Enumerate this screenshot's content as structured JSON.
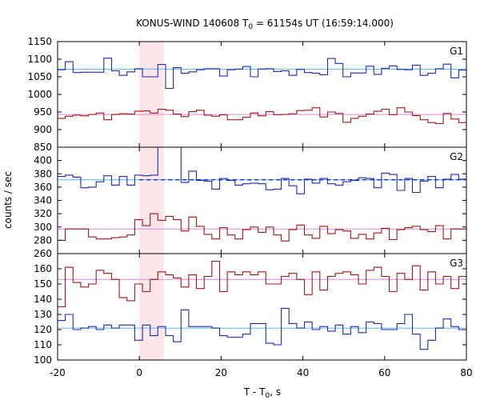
{
  "title": "KONUS-WIND 140608 T",
  "title_sub": "0",
  "title_rest": " = 61154s UT (16:59:14.000)",
  "ylabel": "counts / sec",
  "xlabel_main": "T - T",
  "xlabel_sub": "0",
  "xlabel_tail": ", s",
  "colors": {
    "blue": "#1f2bb0",
    "red": "#a01818",
    "cyan_level": "#56b6f0",
    "violet_level": "#d98ad8",
    "shade": "#fde6ea",
    "frame": "#000000"
  },
  "chart_data": {
    "type": "line",
    "x_axis": {
      "range": [
        -20,
        80
      ],
      "ticks": [
        -20,
        0,
        20,
        40,
        60,
        80
      ],
      "labels": [
        "-20",
        "0",
        "20",
        "40",
        "60",
        "80"
      ]
    },
    "shaded_interval": [
      0,
      6
    ],
    "panels": [
      {
        "name": "G1",
        "y_range": [
          850,
          1150
        ],
        "y_ticks": [
          850,
          900,
          950,
          1000,
          1050,
          1100,
          1150
        ],
        "y_labels": [
          "850",
          "900",
          "950",
          "1000",
          "1050",
          "1100",
          "1150"
        ],
        "series": [
          {
            "color": "blue",
            "values": [
              1070,
              1093,
              1062,
              1063,
              1063,
              1063,
              1103,
              1067,
              1054,
              1064,
              1073,
              1050,
              1050,
              1085,
              1017,
              1076,
              1060,
              1064,
              1070,
              1073,
              1073,
              1052,
              1070,
              1072,
              1079,
              1050,
              1072,
              1073,
              1065,
              1067,
              1054,
              1071,
              1062,
              1060,
              1056,
              1102,
              1088,
              1050,
              1061,
              1061,
              1080,
              1057,
              1074,
              1081,
              1071,
              1070,
              1083,
              1054,
              1060,
              1073,
              1086,
              1047,
              1069
            ],
            "level": 1072,
            "level_color": "cyan_level"
          },
          {
            "color": "red",
            "values": [
              932,
              938,
              941,
              939,
              943,
              947,
              928,
              943,
              945,
              944,
              952,
              953,
              947,
              958,
              955,
              944,
              937,
              951,
              955,
              941,
              938,
              942,
              928,
              928,
              935,
              947,
              939,
              951,
              942,
              943,
              945,
              954,
              955,
              962,
              936,
              950,
              946,
              921,
              932,
              938,
              944,
              952,
              958,
              942,
              962,
              950,
              940,
              928,
              920,
              917,
              946,
              930,
              920
            ],
            "level": 943,
            "level_color": "violet_level"
          }
        ]
      },
      {
        "name": "G2",
        "y_range": [
          260,
          420
        ],
        "y_ticks": [
          260,
          280,
          300,
          320,
          340,
          360,
          380,
          400
        ],
        "y_labels": [
          "260",
          "280",
          "300",
          "320",
          "340",
          "360",
          "380",
          "400"
        ],
        "series": [
          {
            "color": "blue",
            "values": [
              376,
              378,
              375,
              359,
              360,
              368,
              377,
              363,
              376,
              363,
              378,
              377,
              378,
              424,
              424,
              424,
              367,
              384,
              370,
              369,
              357,
              373,
              370,
              363,
              365,
              366,
              365,
              356,
              357,
              373,
              362,
              350,
              372,
              366,
              373,
              365,
              363,
              368,
              370,
              374,
              373,
              359,
              381,
              379,
              355,
              373,
              352,
              369,
              376,
              359,
              372,
              379,
              372
            ],
            "level": 371,
            "level_color": "cyan_level"
          },
          {
            "color": "red",
            "values": [
              280,
              297,
              297,
              297,
              285,
              282,
              282,
              284,
              285,
              288,
              311,
              302,
              320,
              310,
              316,
              311,
              294,
              315,
              301,
              289,
              282,
              299,
              288,
              282,
              296,
              300,
              292,
              300,
              288,
              279,
              296,
              303,
              288,
              283,
              301,
              290,
              296,
              294,
              283,
              289,
              282,
              291,
              298,
              281,
              296,
              299,
              301,
              296,
              293,
              302,
              282,
              297,
              297
            ],
            "level": 297,
            "level_color": "violet_level"
          }
        ]
      },
      {
        "name": "G3",
        "y_range": [
          100,
          170
        ],
        "y_ticks": [
          100,
          110,
          120,
          130,
          140,
          150,
          160
        ],
        "y_labels": [
          "100",
          "110",
          "120",
          "130",
          "140",
          "150",
          "160"
        ],
        "series": [
          {
            "color": "blue",
            "values": [
              126,
              130,
              120,
              121,
              122,
              120,
              123,
              121,
              123,
              123,
              113,
              123,
              116,
              122,
              116,
              112,
              133,
              122,
              122,
              122,
              121,
              116,
              115,
              115,
              117,
              124,
              124,
              111,
              110,
              134,
              124,
              121,
              125,
              120,
              122,
              119,
              123,
              117,
              122,
              118,
              125,
              124,
              120,
              120,
              124,
              130,
              117,
              107,
              113,
              121,
              127,
              122,
              120
            ],
            "level": 121,
            "level_color": "cyan_level"
          },
          {
            "color": "red",
            "values": [
              135,
              161,
              151,
              148,
              150,
              159,
              157,
              153,
              141,
              139,
              150,
              145,
              153,
              158,
              156,
              154,
              148,
              156,
              147,
              155,
              165,
              145,
              158,
              156,
              158,
              156,
              158,
              150,
              150,
              155,
              157,
              153,
              143,
              158,
              146,
              155,
              157,
              158,
              156,
              150,
              159,
              161,
              155,
              145,
              157,
              153,
              162,
              146,
              158,
              150,
              155,
              147,
              155
            ],
            "level": 153,
            "level_color": "violet_level"
          }
        ]
      }
    ]
  }
}
